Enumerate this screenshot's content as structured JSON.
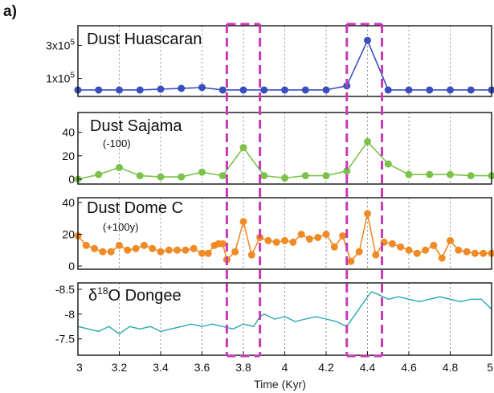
{
  "figure_label": "a)",
  "colors": {
    "huascaran": "#3a4fbd",
    "sajama": "#7cc24a",
    "domec": "#f08a24",
    "dongee": "#2aa8b0",
    "highlight": "#c73ab5",
    "grid": "#777777"
  },
  "chart_data": [
    {
      "type": "line",
      "title": "Dust Huascaran",
      "note": "",
      "xlim": [
        3,
        5
      ],
      "ylim": [
        20000,
        380000
      ],
      "yticks": [
        100000,
        300000
      ],
      "ytick_labels": [
        "1x10",
        "3x10"
      ],
      "ytick_superscripts": [
        "5",
        "5"
      ],
      "grid": "vertical dotted",
      "series": [
        {
          "x": [
            3.0,
            3.1,
            3.2,
            3.3,
            3.4,
            3.5,
            3.6,
            3.7,
            3.8,
            3.9,
            4.0,
            4.1,
            4.2,
            4.3,
            4.4,
            4.5,
            4.6,
            4.7,
            4.8,
            4.9,
            5.0
          ],
          "y": [
            30000,
            30000,
            30000,
            30000,
            35000,
            40000,
            45000,
            30000,
            30000,
            30000,
            30000,
            30000,
            30000,
            55000,
            330000,
            30000,
            30000,
            30000,
            30000,
            30000,
            30000
          ]
        }
      ]
    },
    {
      "type": "line",
      "title": "Dust Sajama",
      "note": "(-100)",
      "xlim": [
        3,
        5
      ],
      "ylim": [
        0,
        50
      ],
      "yticks": [
        0,
        20,
        40
      ],
      "ytick_labels": [
        "0",
        "20",
        "40"
      ],
      "grid": "vertical dotted",
      "series": [
        {
          "x": [
            3.0,
            3.1,
            3.2,
            3.3,
            3.4,
            3.5,
            3.6,
            3.7,
            3.8,
            3.9,
            4.0,
            4.1,
            4.2,
            4.3,
            4.4,
            4.5,
            4.6,
            4.7,
            4.8,
            4.9,
            5.0
          ],
          "y": [
            0,
            4,
            10,
            3,
            2,
            2,
            6,
            3,
            27,
            3,
            1,
            3,
            3,
            7,
            32,
            13,
            4,
            4,
            4,
            3,
            3
          ]
        }
      ]
    },
    {
      "type": "line",
      "title": "Dust Dome C",
      "note": "(+100y)",
      "xlim": [
        3,
        5
      ],
      "ylim": [
        0,
        40
      ],
      "yticks": [
        0,
        20,
        40
      ],
      "ytick_labels": [
        "0",
        "20",
        "40"
      ],
      "grid": "vertical dotted",
      "series": [
        {
          "x": [
            3.0,
            3.04,
            3.08,
            3.12,
            3.16,
            3.2,
            3.24,
            3.28,
            3.32,
            3.36,
            3.4,
            3.44,
            3.48,
            3.52,
            3.56,
            3.6,
            3.63,
            3.66,
            3.68,
            3.7,
            3.72,
            3.76,
            3.8,
            3.84,
            3.88,
            3.92,
            3.96,
            4.0,
            4.04,
            4.08,
            4.12,
            4.16,
            4.2,
            4.24,
            4.28,
            4.32,
            4.36,
            4.4,
            4.44,
            4.48,
            4.52,
            4.56,
            4.6,
            4.64,
            4.68,
            4.72,
            4.76,
            4.8,
            4.84,
            4.88,
            4.92,
            4.96,
            5.0
          ],
          "y": [
            19,
            13,
            11,
            9,
            9,
            13,
            10,
            11,
            13,
            11,
            9,
            10,
            10,
            10,
            11,
            8,
            8,
            13,
            14,
            14,
            4,
            9,
            28,
            7,
            18,
            16,
            15,
            16,
            15,
            20,
            17,
            18,
            20,
            12,
            19,
            3,
            9,
            33,
            7,
            15,
            14,
            12,
            10,
            8,
            10,
            13,
            5,
            16,
            10,
            9,
            8,
            8,
            8
          ]
        }
      ]
    },
    {
      "type": "line",
      "title": "δ18O Dongee",
      "title_prefix": "δ",
      "title_sup": "18",
      "title_rest": "O Dongee",
      "note": "",
      "xlim": [
        3,
        5
      ],
      "ylim": [
        -8.5,
        -7.3
      ],
      "yaxis_reversed": true,
      "yticks": [
        -8.5,
        -8,
        -7.5
      ],
      "ytick_labels": [
        "-8.5",
        "-8",
        "-7.5"
      ],
      "grid": "vertical dotted",
      "xticks": [
        3,
        3.2,
        3.4,
        3.6,
        3.8,
        4,
        4.2,
        4.4,
        4.6,
        4.8,
        5
      ],
      "xtick_labels": [
        "3",
        "3.2",
        "3.4",
        "3.6",
        "3.8",
        "4",
        "4.2",
        "4.4",
        "4.6",
        "4.8",
        "5"
      ],
      "xlabel": "Time (Kyr)",
      "series": [
        {
          "x": [
            3.0,
            3.05,
            3.1,
            3.15,
            3.2,
            3.25,
            3.3,
            3.35,
            3.4,
            3.45,
            3.5,
            3.55,
            3.6,
            3.65,
            3.7,
            3.75,
            3.8,
            3.85,
            3.88,
            3.9,
            3.95,
            4.0,
            4.05,
            4.1,
            4.15,
            4.2,
            4.25,
            4.3,
            4.35,
            4.4,
            4.42,
            4.45,
            4.5,
            4.55,
            4.6,
            4.65,
            4.7,
            4.75,
            4.8,
            4.85,
            4.9,
            4.95,
            5.0
          ],
          "y": [
            -7.75,
            -7.7,
            -7.65,
            -7.75,
            -7.6,
            -7.75,
            -7.7,
            -7.75,
            -7.65,
            -7.7,
            -7.75,
            -7.8,
            -7.75,
            -7.8,
            -7.75,
            -7.7,
            -7.8,
            -7.75,
            -7.95,
            -8.0,
            -7.9,
            -7.95,
            -7.85,
            -7.9,
            -7.95,
            -7.9,
            -7.85,
            -7.75,
            -8.05,
            -8.35,
            -8.45,
            -8.4,
            -8.3,
            -8.35,
            -8.3,
            -8.25,
            -8.3,
            -8.35,
            -8.3,
            -8.25,
            -8.3,
            -8.3,
            -8.1
          ]
        }
      ]
    }
  ],
  "highlight_bands": [
    {
      "x0": 3.72,
      "x1": 3.88
    },
    {
      "x0": 4.3,
      "x1": 4.47
    }
  ]
}
